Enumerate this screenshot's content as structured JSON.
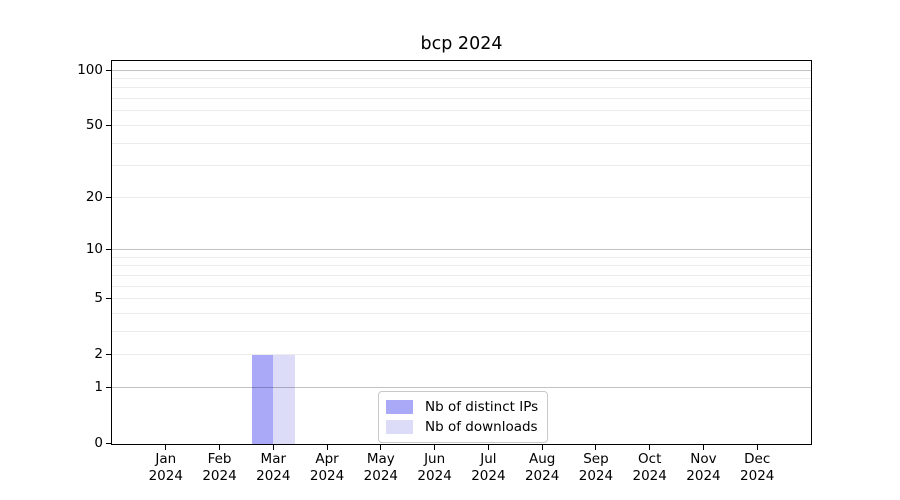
{
  "chart_data": {
    "type": "bar",
    "title": "bcp 2024",
    "categories": [
      "Jan",
      "Feb",
      "Mar",
      "Apr",
      "May",
      "Jun",
      "Jul",
      "Aug",
      "Sep",
      "Oct",
      "Nov",
      "Dec"
    ],
    "x_year_label": "2024",
    "series": [
      {
        "name": "Nb of distinct IPs",
        "color": "#a9a9f7",
        "values": [
          0,
          0,
          2,
          0,
          0,
          0,
          0,
          0,
          0,
          0,
          0,
          0
        ]
      },
      {
        "name": "Nb of downloads",
        "color": "#dcdcf9",
        "values": [
          0,
          0,
          2,
          0,
          0,
          0,
          0,
          0,
          0,
          0,
          0,
          0
        ]
      }
    ],
    "y_axis": {
      "scale": "log1p",
      "ticks": [
        0,
        1,
        2,
        5,
        10,
        20,
        50,
        100
      ],
      "max": 112
    },
    "grid": {
      "major_values": [
        1,
        10,
        100
      ],
      "minor_values": [
        2,
        3,
        4,
        5,
        6,
        7,
        8,
        9,
        20,
        30,
        40,
        50,
        60,
        70,
        80,
        90
      ],
      "major_color": "rgba(0,0,0,0.24)",
      "minor_color": "rgba(0,0,0,0.08)"
    },
    "legend": {
      "position": "inside-bottom-center"
    },
    "colors": {
      "background": "#ffffff",
      "axis": "#000000",
      "text": "#000000"
    }
  }
}
